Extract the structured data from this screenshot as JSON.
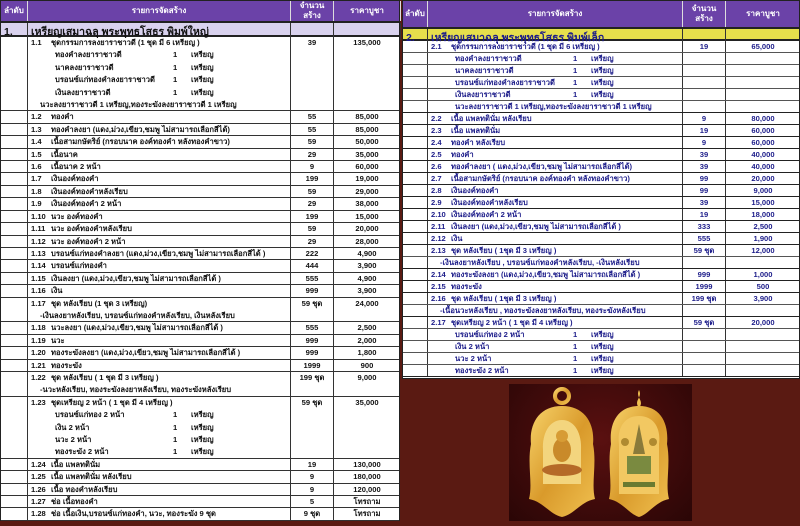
{
  "header": {
    "no": "ลำดับ",
    "item": "รายการจัดสร้าง",
    "qty": "จำนวนสร้าง",
    "price": "ราคาบูชา"
  },
  "colors": {
    "header": "#6b42a8",
    "group1": "#d9d2ee",
    "group2": "#e6df4c",
    "right_text": "#1d1d8a",
    "background": "#5a1a12",
    "medal": "#e2a93a"
  },
  "left": {
    "group_no": "1.",
    "group_title": "เหรียญเสมาฉลุ พระพุทธโสธร พิมพ์ใหญ่",
    "items": [
      {
        "code": "1.1",
        "text": "ชุดกรรมการลงยาราชาวดี     (1 ชุด มี 6 เหรียญ )",
        "qty": "39",
        "price": "135,000",
        "subs": [
          {
            "n": "ทองคำลงยาราชาวดี",
            "k": "1",
            "u": "เหรียญ"
          },
          {
            "n": "นาคลงยาราชาวดี",
            "k": "1",
            "u": "เหรียญ"
          },
          {
            "n": "บรอนซ์แก่ทองคำลงยาราชาวดี",
            "k": "1",
            "u": "เหรียญ"
          },
          {
            "n": "เงินลงยาราชาวดี",
            "k": "1",
            "u": "เหรียญ"
          }
        ],
        "note": "นวะลงยาราชาวดี 1 เหรียญ,ทองระฆังลงยาราชาวดี 1 เหรียญ"
      },
      {
        "code": "1.2",
        "text": "ทองคำ",
        "qty": "55",
        "price": "85,000"
      },
      {
        "code": "1.3",
        "text": "ทองคำลงยา (แดง,ม่วง,เขียว,ชมพู ไม่สามารถเลือกสีได้)",
        "qty": "55",
        "price": "85,000"
      },
      {
        "code": "1.4",
        "text": "เนื้อสามกษัตริย์ (กรอบนาค องค์ทองคำ หลังทองคำขาว)",
        "qty": "59",
        "price": "50,000"
      },
      {
        "code": "1.5",
        "text": "เนื้อนาค",
        "qty": "29",
        "price": "35,000"
      },
      {
        "code": "1.6",
        "text": "เนื้อนาค 2 หน้า",
        "qty": "9",
        "price": "60,000"
      },
      {
        "code": "1.7",
        "text": "เงินองค์ทองคำ",
        "qty": "199",
        "price": "19,000"
      },
      {
        "code": "1.8",
        "text": "เงินองค์ทองคำหลังเรียบ",
        "qty": "59",
        "price": "29,000"
      },
      {
        "code": "1.9",
        "text": "เงินองค์ทองคำ 2 หน้า",
        "qty": "29",
        "price": "38,000"
      },
      {
        "code": "1.10",
        "text": "นวะ องค์ทองคำ",
        "qty": "199",
        "price": "15,000"
      },
      {
        "code": "1.11",
        "text": "นวะ องค์ทองคำหลังเรียบ",
        "qty": "59",
        "price": "20,000"
      },
      {
        "code": "1.12",
        "text": "นวะ องค์ทองคำ 2 หน้า",
        "qty": "29",
        "price": "28,000"
      },
      {
        "code": "1.13",
        "text": "บรอนซ์แก่ทองคำลงยา  (แดง,ม่วง,เขียว,ชมพู ไม่สามารถเลือกสีได้ )",
        "qty": "222",
        "price": "4,900"
      },
      {
        "code": "1.14",
        "text": "บรอนซ์แก่ทองคำ",
        "qty": "444",
        "price": "3,900"
      },
      {
        "code": "1.15",
        "text": "เงินลงยา   (แดง,ม่วง,เขียว,ชมพู ไม่สามารถเลือกสีได้ )",
        "qty": "555",
        "price": "4,900"
      },
      {
        "code": "1.16",
        "text": "เงิน",
        "qty": "999",
        "price": "3,900"
      },
      {
        "code": "1.17",
        "text": "ชุด หลังเรียบ (1 ชุด  3 เหรียญ)",
        "qty": "59 ชุด",
        "price": "24,000",
        "note": "-เงินลงยาหลังเรียบ, บรอนซ์แก่ทองคำหลังเรียบ, เงินหลังเรียบ"
      },
      {
        "code": "1.18",
        "text": "นวะลงยา  (แดง,ม่วง,เขียว,ชมพู  ไม่สามารถเลือกสีได้ )",
        "qty": "555",
        "price": "2,500"
      },
      {
        "code": "1.19",
        "text": "นวะ",
        "qty": "999",
        "price": "2,000"
      },
      {
        "code": "1.20",
        "text": "ทองระฆังลงยา (แดง,ม่วง,เขียว,ชมพู  ไม่สามารถเลือกสีได้ )",
        "qty": "999",
        "price": "1,800"
      },
      {
        "code": "1.21",
        "text": "ทองระฆัง",
        "qty": "1999",
        "price": "900"
      },
      {
        "code": "1.22",
        "text": "ชุด หลังเรียบ ( 1 ชุด มี 3 เหรียญ )",
        "qty": "199 ชุด",
        "price": "9,000",
        "note": "-นวะหลังเรียบ, ทองระฆังลงยาหลังเรียบ, ทองระฆังหลังเรียบ"
      },
      {
        "code": "1.23",
        "text": "ชุดเหรียญ 2 หน้า   ( 1 ชุด  มี 4 เหรียญ )",
        "qty": "59 ชุด",
        "price": "35,000",
        "subs": [
          {
            "n": "บรอนซ์แก่ทอง 2 หน้า",
            "k": "1",
            "u": "เหรียญ"
          },
          {
            "n": "เงิน 2 หน้า",
            "k": "1",
            "u": "เหรียญ"
          },
          {
            "n": "นวะ 2 หน้า",
            "k": "1",
            "u": "เหรียญ"
          },
          {
            "n": "ทองระฆัง 2 หน้า",
            "k": "1",
            "u": "เหรียญ"
          }
        ]
      },
      {
        "code": "1.24",
        "text": "เนื้อ แพลทตินั่ม",
        "qty": "19",
        "price": "130,000"
      },
      {
        "code": "1.25",
        "text": "เนื้อ แพลทตินั่ม หลังเรียบ",
        "qty": "9",
        "price": "180,000"
      },
      {
        "code": "1.26",
        "text": "เนื้อ ทองคำหลังเรียบ",
        "qty": "9",
        "price": "120,000"
      },
      {
        "code": "1.27",
        "text": "ช่อ เนื้อทองคำ",
        "qty": "5",
        "price": "โทรถาม"
      },
      {
        "code": "1.28",
        "text": "ช่อ เนื้อเงิน,บรอนซ์แก่ทองคำ, นวะ, ทองระฆัง 9 ชุด",
        "qty": "9 ชุด",
        "price": "โทรถาม"
      }
    ]
  },
  "right": {
    "group_no": "2.",
    "group_title": "เหรียญเสมาฉลุ พระพุทธโสธร พิมพ์เล็ก",
    "items": [
      {
        "code": "2.1",
        "text": "ชุดกรรมการลงยาราชาวดี     (1 ชุด มี 6 เหรียญ )",
        "qty": "19",
        "price": "65,000",
        "subs": [
          {
            "n": "ทองคำลงยาราชาวดี",
            "k": "1",
            "u": "เหรียญ"
          },
          {
            "n": "นาคลงยาราชาวดี",
            "k": "1",
            "u": "เหรียญ"
          },
          {
            "n": "บรอนซ์แก่ทองคำลงยาราชาวดี",
            "k": "1",
            "u": "เหรียญ"
          },
          {
            "n": "เงินลงยาราชาวดี",
            "k": "1",
            "u": "เหรียญ"
          }
        ],
        "subnote": "นวะลงยาราชาวดี 1 เหรียญ,ทองระฆังลงยาราชาวดี 1 เหรียญ"
      },
      {
        "code": "2.2",
        "text": "เนื้อ แพลทตินั่ม  หลังเรียบ",
        "qty": "9",
        "price": "80,000"
      },
      {
        "code": "2.3",
        "text": "เนื้อ แพลทตินั่ม",
        "qty": "19",
        "price": "60,000"
      },
      {
        "code": "2.4",
        "text": "ทองคำ หลังเรียบ",
        "qty": "9",
        "price": "60,000"
      },
      {
        "code": "2.5",
        "text": "ทองคำ",
        "qty": "39",
        "price": "40,000"
      },
      {
        "code": "2.6",
        "text": "ทองคำลงยา ( แดง,ม่วง,เขียว,ชมพู  ไม่สามารถเลือกสีได้)",
        "qty": "39",
        "price": "40,000"
      },
      {
        "code": "2.7",
        "text": "เนื้อสามกษัตริย์ (กรอบนาค องค์ทองคำ หลังทองคำขาว)",
        "qty": "99",
        "price": "20,000"
      },
      {
        "code": "2.8",
        "text": "เงินองค์ทองคำ",
        "qty": "99",
        "price": "9,000"
      },
      {
        "code": "2.9",
        "text": "เงินองค์ทองคำหลังเรียบ",
        "qty": "39",
        "price": "15,000"
      },
      {
        "code": "2.10",
        "text": "เงินองค์ทองคำ 2 หน้า",
        "qty": "19",
        "price": "18,000"
      },
      {
        "code": "2.11",
        "text": "เงินลงยา   (แดง,ม่วง,เขียว,ชมพู  ไม่สามารถเลือกสีได้ )",
        "qty": "333",
        "price": "2,500"
      },
      {
        "code": "2.12",
        "text": "เงิน",
        "qty": "555",
        "price": "1,900"
      },
      {
        "code": "2.13",
        "text": "ชุด หลังเรียบ   ( 1ชุด มี 3 เหรียญ )",
        "qty": "59 ชุด",
        "price": "12,000",
        "note": "-เงินลงยาหลังเรียบ  , บรอนซ์แก่ทองคำหลังเรียบ, -เงินหลังเรียบ"
      },
      {
        "code": "2.14",
        "text": "ทองระฆังลงยา (แดง,ม่วง,เขียว,ชมพู ไม่สามารถเลือกสีได้ )",
        "qty": "999",
        "price": "1,000"
      },
      {
        "code": "2.15",
        "text": "ทองระฆัง",
        "qty": "1999",
        "price": "500"
      },
      {
        "code": "2.16",
        "text": "ชุด หลังเรียบ  ( 1ชุด มี 3 เหรียญ )",
        "qty": "199 ชุด",
        "price": "3,900",
        "note": "-เนื้อนวะหลังเรียบ  , ทองระฆังลงยาหลังเรียบ, ทองระฆังหลังเรียบ"
      },
      {
        "code": "2.17",
        "text": "ชุดเหรียญ 2 หน้า   ( 1 ชุด มี 4 เหรียญ )",
        "qty": "59 ชุด",
        "price": "20,000",
        "subs": [
          {
            "n": "บรอนซ์แก่ทอง 2 หน้า",
            "k": "1",
            "u": "เหรียญ"
          },
          {
            "n": "เงิน 2 หน้า",
            "k": "1",
            "u": "เหรียญ"
          },
          {
            "n": "นวะ 2 หน้า",
            "k": "1",
            "u": "เหรียญ"
          },
          {
            "n": "ทองระฆัง 2 หน้า",
            "k": "1",
            "u": "เหรียญ"
          }
        ]
      }
    ]
  },
  "photo": {
    "subject": "amulet front and back"
  }
}
